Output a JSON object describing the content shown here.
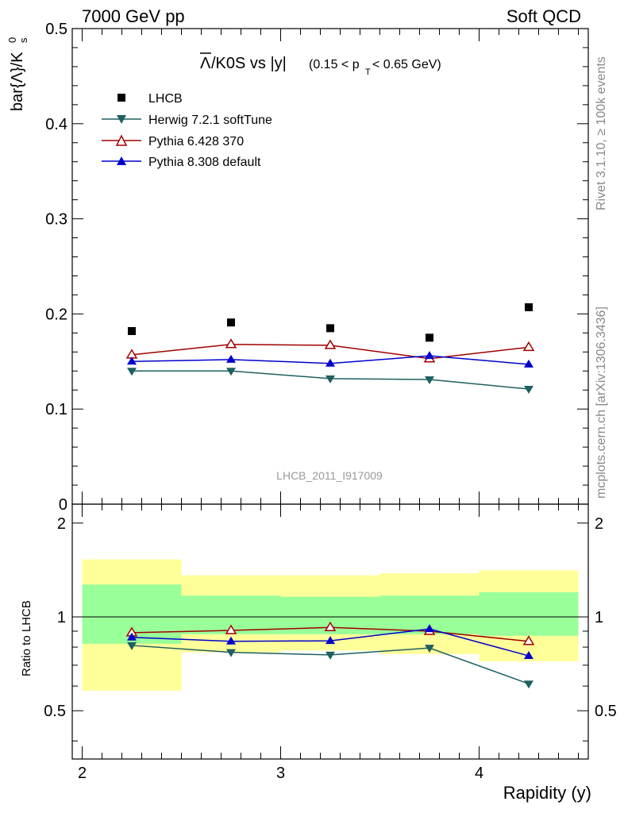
{
  "header": {
    "left": "7000 GeV pp",
    "right": "Soft QCD"
  },
  "side_text": {
    "rivet": "Rivet 3.1.10, ≥ 100k events",
    "mcplots": "mcplots.cern.ch [arXiv:1306.3436]"
  },
  "watermark": "LHCB_2011_I917009",
  "chart_data": [
    {
      "panel": "main",
      "type": "scatter",
      "title_main": "/K0S vs |y|",
      "title_overline_symbol": "Λ",
      "title_cut": "(0.15 < p",
      "title_cut_sub": "T",
      "title_cut_end": " < 0.65 GeV)",
      "ylabel": "bar{Λ}/K",
      "ylabel_sup": "0",
      "ylabel_sub": "s",
      "xlabel": "",
      "ylim": [
        0,
        0.5
      ],
      "yticks": [
        "0",
        "0.1",
        "0.2",
        "0.3",
        "0.4",
        "0.5"
      ],
      "x": [
        2.25,
        2.75,
        3.25,
        3.75,
        4.25
      ],
      "xlim": [
        1.95,
        4.55
      ],
      "legend_placement": "top-left",
      "series": [
        {
          "name": "LHCB",
          "color": "#000000",
          "marker": "square",
          "line": false,
          "values": [
            0.182,
            0.191,
            0.185,
            0.175,
            0.207
          ]
        },
        {
          "name": "Herwig 7.2.1 softTune",
          "color": "#1f5f5f",
          "marker": "triangle-down",
          "line": true,
          "values": [
            0.14,
            0.14,
            0.132,
            0.131,
            0.121
          ]
        },
        {
          "name": "Pythia 6.428 370",
          "color": "#a00000",
          "marker": "triangle-open",
          "line": true,
          "values": [
            0.157,
            0.168,
            0.167,
            0.153,
            0.165
          ]
        },
        {
          "name": "Pythia 8.308 default",
          "color": "#0000cc",
          "marker": "triangle-up",
          "line": true,
          "values": [
            0.15,
            0.152,
            0.148,
            0.156,
            0.147
          ]
        }
      ]
    },
    {
      "panel": "ratio",
      "type": "line",
      "ylabel": "Ratio to LHCB",
      "xlabel": "Rapidity (y)",
      "ylim": [
        0.35,
        2.3
      ],
      "yticks": [
        "0.5",
        "1",
        "2"
      ],
      "xticks": [
        "2",
        "3",
        "4"
      ],
      "bins": [
        [
          2.0,
          2.5
        ],
        [
          2.5,
          3.0
        ],
        [
          3.0,
          3.5
        ],
        [
          3.5,
          4.0
        ],
        [
          4.0,
          4.5
        ]
      ],
      "band_stat_lo": [
        0.82,
        0.88,
        0.88,
        0.88,
        0.87
      ],
      "band_stat_hi": [
        1.27,
        1.17,
        1.16,
        1.17,
        1.2
      ],
      "band_total_lo": [
        0.58,
        0.77,
        0.78,
        0.76,
        0.72
      ],
      "band_total_hi": [
        1.53,
        1.36,
        1.36,
        1.38,
        1.41
      ],
      "x": [
        2.25,
        2.75,
        3.25,
        3.75,
        4.25
      ],
      "series": [
        {
          "name": "Herwig 7.2.1 softTune",
          "color": "#1f5f5f",
          "marker": "triangle-down",
          "values": [
            0.81,
            0.77,
            0.755,
            0.795,
            0.61
          ]
        },
        {
          "name": "Pythia 6.428 370",
          "color": "#a00000",
          "marker": "triangle-open",
          "values": [
            0.89,
            0.905,
            0.925,
            0.9,
            0.835
          ]
        },
        {
          "name": "Pythia 8.308 default",
          "color": "#0000cc",
          "marker": "triangle-up",
          "values": [
            0.86,
            0.835,
            0.838,
            0.915,
            0.75
          ]
        }
      ],
      "colors": {
        "stat_band": "#99ff99",
        "total_band": "#ffff99",
        "reference_line": "#000000"
      }
    }
  ]
}
